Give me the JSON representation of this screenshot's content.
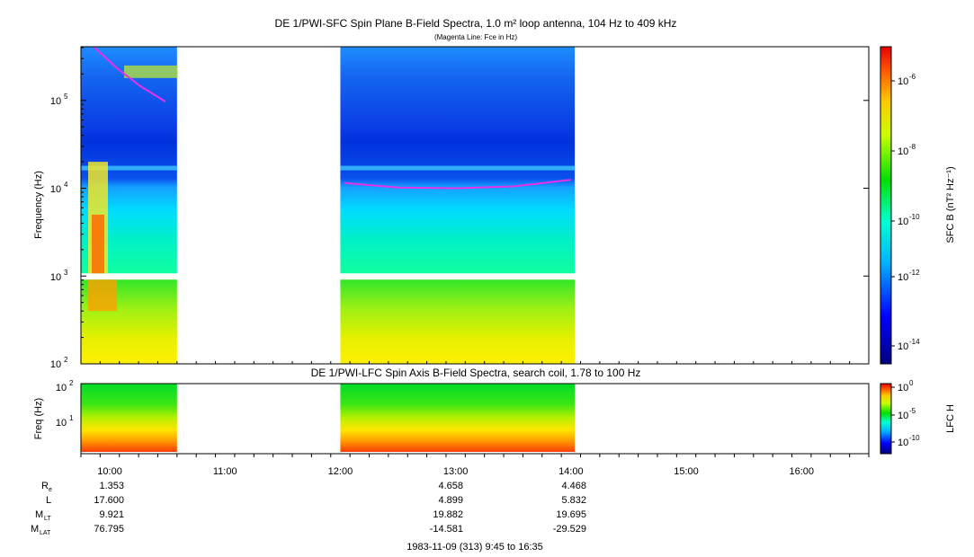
{
  "chart_data": [
    {
      "type": "heatmap",
      "title": "DE 1/PWI-SFC  Spin Plane B-Field Spectra, 1.0 m² loop antenna, 104 Hz to 409 kHz",
      "subtitle": "(Magenta Line: Fce in Hz)",
      "ylabel": "Frequency (Hz)",
      "yscale": "log",
      "ylim": [
        100,
        409000
      ],
      "yticks": [
        "10^2",
        "10^3",
        "10^4",
        "10^5"
      ],
      "colorbar_label": "SFC B (nT² Hz⁻¹)",
      "colorbar_scale": "log",
      "colorbar_range": [
        1e-15,
        1e-05
      ],
      "colorbar_ticks": [
        "10^-6",
        "10^-8",
        "10^-10",
        "10^-12",
        "10^-14"
      ],
      "data_segments": [
        {
          "start": "09:45",
          "end": "10:35"
        },
        {
          "start": "12:00",
          "end": "14:02"
        }
      ],
      "fce_line": {
        "segment1": [
          {
            "t": "09:52",
            "f": 400000
          },
          {
            "t": "10:04",
            "f": 230000
          },
          {
            "t": "10:16",
            "f": 145000
          },
          {
            "t": "10:29",
            "f": 97000
          }
        ],
        "segment2": [
          {
            "t": "12:02",
            "f": 11500
          },
          {
            "t": "12:30",
            "f": 10200
          },
          {
            "t": "13:00",
            "f": 10000
          },
          {
            "t": "13:30",
            "f": 10500
          },
          {
            "t": "14:00",
            "f": 12500
          }
        ]
      }
    },
    {
      "type": "heatmap",
      "title": "DE 1/PWI-LFC  Spin Axis B-Field Spectra, search coil, 1.78 to 100 Hz",
      "ylabel": "Freq (Hz)",
      "yscale": "log",
      "ylim": [
        1.78,
        100
      ],
      "yticks": [
        "10^1",
        "10^2"
      ],
      "colorbar_label": "LFC H",
      "colorbar_scale": "log",
      "colorbar_range": [
        1e-12,
        1
      ],
      "colorbar_ticks": [
        "10^0",
        "10^-5",
        "10^-10"
      ],
      "data_segments": [
        {
          "start": "09:45",
          "end": "10:35"
        },
        {
          "start": "12:00",
          "end": "14:02"
        }
      ]
    }
  ],
  "time_axis": {
    "start": "09:45",
    "end": "16:35",
    "ticks": [
      "10:00",
      "11:00",
      "12:00",
      "13:00",
      "14:00",
      "15:00",
      "16:00"
    ]
  },
  "ephemeris": {
    "rows": [
      {
        "label": "R",
        "sub": "e",
        "values": [
          "1.353",
          "4.658",
          "4.468"
        ]
      },
      {
        "label": "L",
        "sub": "",
        "values": [
          "17.600",
          "4.899",
          "5.832"
        ]
      },
      {
        "label": "M",
        "sub": "LT",
        "values": [
          "9.921",
          "19.882",
          "19.695"
        ]
      },
      {
        "label": "M",
        "sub": "LAT",
        "values": [
          "76.795",
          "-14.581",
          "-29.529"
        ]
      }
    ]
  },
  "footer": "1983-11-09 (313) 9:45 to 16:35"
}
